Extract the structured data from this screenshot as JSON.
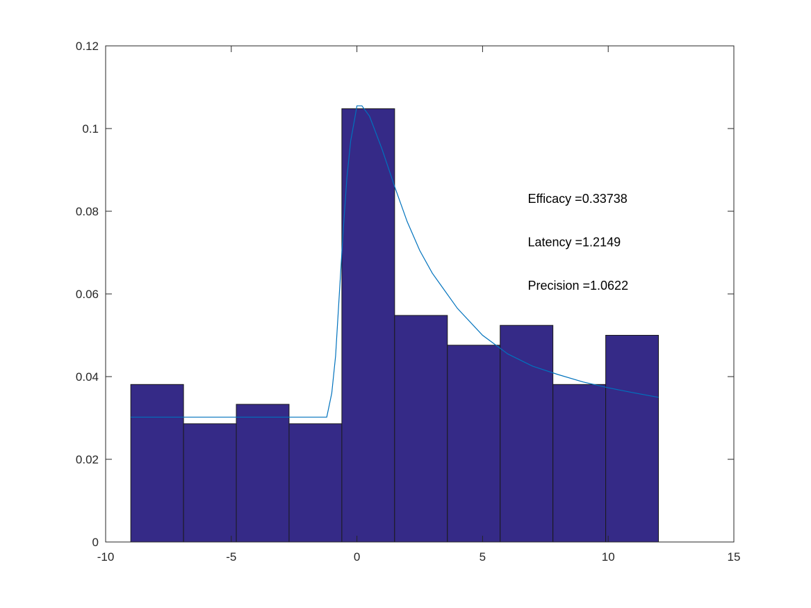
{
  "chart_data": {
    "type": "bar",
    "title": "",
    "xlabel": "",
    "ylabel": "",
    "xlim": [
      -10,
      15
    ],
    "ylim": [
      0,
      0.12
    ],
    "xticks": [
      -10,
      -5,
      0,
      5,
      10,
      15
    ],
    "xtick_labels": [
      "-10",
      "-5",
      "0",
      "5",
      "10",
      "15"
    ],
    "yticks": [
      0,
      0.02,
      0.04,
      0.06,
      0.08,
      0.1,
      0.12
    ],
    "ytick_labels": [
      "0",
      "0.02",
      "0.04",
      "0.06",
      "0.08",
      "0.1",
      "0.12"
    ],
    "grid": false,
    "bars": {
      "edges": [
        -9.0,
        -6.9,
        -4.8,
        -2.7,
        -0.6,
        1.5,
        3.6,
        5.7,
        7.8,
        9.9,
        12.0
      ],
      "values": [
        0.0381,
        0.0286,
        0.0333,
        0.0286,
        0.1048,
        0.0548,
        0.0476,
        0.0524,
        0.0381,
        0.05
      ],
      "color": "#352a87",
      "edge_color": "#1a1a1a"
    },
    "series": [
      {
        "type": "line",
        "color": "#0072bd",
        "x": [
          -9.0,
          -8.0,
          -6.0,
          -4.0,
          -2.0,
          -1.2,
          -1.0,
          -0.85,
          -0.7,
          -0.55,
          -0.4,
          -0.25,
          -0.1,
          0.0,
          0.2,
          0.5,
          1.0,
          1.5,
          2.0,
          2.5,
          3.0,
          4.0,
          5.0,
          6.0,
          7.0,
          8.0,
          9.0,
          10.0,
          11.0,
          12.0
        ],
        "y": [
          0.0302,
          0.0302,
          0.0302,
          0.0302,
          0.0302,
          0.0302,
          0.036,
          0.045,
          0.06,
          0.075,
          0.088,
          0.097,
          0.102,
          0.1055,
          0.1055,
          0.103,
          0.095,
          0.086,
          0.0775,
          0.0705,
          0.065,
          0.0565,
          0.05,
          0.0455,
          0.0425,
          0.0405,
          0.0387,
          0.0373,
          0.0361,
          0.035
        ]
      }
    ],
    "annotations": [
      {
        "text": "Efficacy =0.33738",
        "x": 6.8,
        "y": 0.083
      },
      {
        "text": "Latency =1.2149",
        "x": 6.8,
        "y": 0.0725
      },
      {
        "text": "Precision =1.0622",
        "x": 6.8,
        "y": 0.062
      }
    ]
  }
}
